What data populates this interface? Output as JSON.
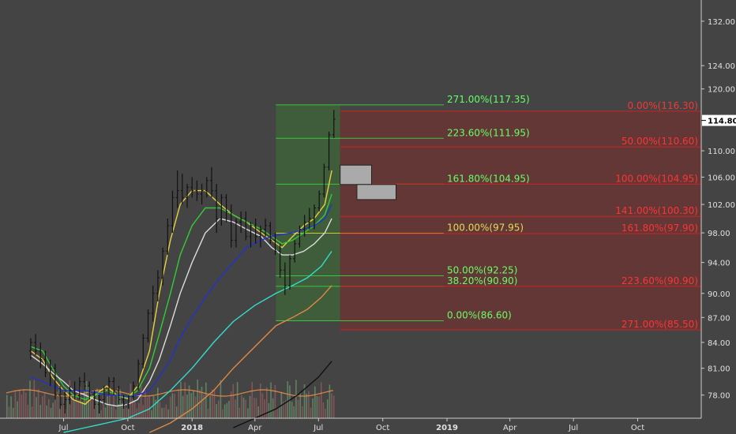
{
  "chart_data": {
    "type": "candlestick",
    "background": "#444444",
    "ylim": [
      75.5,
      136
    ],
    "y_scale": "log",
    "x_axis": {
      "ticks": [
        {
          "label": "Jul",
          "date": "2017-07",
          "bold": false
        },
        {
          "label": "Oct",
          "date": "2017-10",
          "bold": false
        },
        {
          "label": "2018",
          "date": "2018-01",
          "bold": true
        },
        {
          "label": "Apr",
          "date": "2018-04",
          "bold": false
        },
        {
          "label": "Jul",
          "date": "2018-07",
          "bold": false
        },
        {
          "label": "Oct",
          "date": "2018-10",
          "bold": false
        },
        {
          "label": "2019",
          "date": "2019-01",
          "bold": true
        },
        {
          "label": "Apr",
          "date": "2019-04",
          "bold": false
        },
        {
          "label": "Jul",
          "date": "2019-07",
          "bold": false
        },
        {
          "label": "Oct",
          "date": "2019-10",
          "bold": false
        }
      ]
    },
    "y_axis": {
      "ticks": [
        "78.00",
        "81.00",
        "84.00",
        "87.00",
        "90.00",
        "94.00",
        "98.00",
        "102.00",
        "106.00",
        "110.00",
        "114.80",
        "120.00",
        "124.00",
        "132.00"
      ],
      "current_price": "114.80",
      "current_price_color": "#ffffff"
    },
    "fib_extension_green": {
      "color": "#3cc43c",
      "label_color": "#66ff66",
      "levels": [
        {
          "label": "271.00%(117.35)",
          "price": 117.35
        },
        {
          "label": "223.60%(111.95)",
          "price": 111.95
        },
        {
          "label": "161.80%(104.95)",
          "price": 104.95
        },
        {
          "label": "100.00%(97.95)",
          "price": 97.95,
          "color": "#cccc33"
        },
        {
          "label": "50.00%(92.25)",
          "price": 92.25
        },
        {
          "label": "38.20%(90.90)",
          "price": 90.9
        },
        {
          "label": "0.00%(86.60)",
          "price": 86.6
        }
      ]
    },
    "fib_projection_red": {
      "color": "#cc2222",
      "label_color": "#ff3333",
      "levels": [
        {
          "label": "0.00%(116.30)",
          "price": 116.3
        },
        {
          "label": "50.00%(110.60)",
          "price": 110.6
        },
        {
          "label": "100.00%(104.95)",
          "price": 104.95
        },
        {
          "label": "141.00%(100.30)",
          "price": 100.3
        },
        {
          "label": "161.80%(97.90)",
          "price": 97.9
        },
        {
          "label": "223.60%(90.90)",
          "price": 90.9
        },
        {
          "label": "271.00%(85.50)",
          "price": 85.5
        }
      ]
    },
    "gray_boxes": [
      {
        "start": "2018-08-01",
        "end": "2018-09-15",
        "top": 107.8,
        "bottom": 104.9
      },
      {
        "start": "2018-08-25",
        "end": "2018-10-20",
        "top": 104.9,
        "bottom": 102.7
      }
    ],
    "green_zone": {
      "start": "2018-05-01",
      "end": "2018-08-01",
      "top": 117.35,
      "bottom": 86.6
    },
    "red_zone": {
      "start": "2018-08-01",
      "end": "2019-12-31",
      "top": 116.3,
      "bottom": 85.5
    },
    "moving_averages": [
      {
        "color": "#e8d23c",
        "points": [
          [
            "2017-05-15",
            83
          ],
          [
            "2017-06-01",
            82
          ],
          [
            "2017-06-15",
            80
          ],
          [
            "2017-07-01",
            78.5
          ],
          [
            "2017-07-15",
            77.5
          ],
          [
            "2017-08-01",
            77
          ],
          [
            "2017-08-15",
            78
          ],
          [
            "2017-09-01",
            79
          ],
          [
            "2017-09-15",
            78
          ],
          [
            "2017-10-01",
            77.6
          ],
          [
            "2017-10-15",
            79
          ],
          [
            "2017-11-01",
            83
          ],
          [
            "2017-11-15",
            90
          ],
          [
            "2017-12-01",
            97
          ],
          [
            "2017-12-15",
            102
          ],
          [
            "2018-01-01",
            104
          ],
          [
            "2018-01-20",
            104
          ],
          [
            "2018-02-10",
            102
          ],
          [
            "2018-03-01",
            100.5
          ],
          [
            "2018-03-20",
            99.5
          ],
          [
            "2018-04-10",
            98
          ],
          [
            "2018-04-25",
            97
          ],
          [
            "2018-05-10",
            96
          ],
          [
            "2018-05-25",
            97.5
          ],
          [
            "2018-06-10",
            99
          ],
          [
            "2018-06-25",
            100
          ],
          [
            "2018-07-10",
            102
          ],
          [
            "2018-07-20",
            107
          ]
        ]
      },
      {
        "color": "#33cc33",
        "points": [
          [
            "2017-05-15",
            83.5
          ],
          [
            "2017-06-01",
            83
          ],
          [
            "2017-06-15",
            81
          ],
          [
            "2017-07-01",
            79
          ],
          [
            "2017-07-15",
            78
          ],
          [
            "2017-08-01",
            77.5
          ],
          [
            "2017-08-15",
            78
          ],
          [
            "2017-09-01",
            78.5
          ],
          [
            "2017-09-15",
            78
          ],
          [
            "2017-10-01",
            77.7
          ],
          [
            "2017-10-15",
            78.5
          ],
          [
            "2017-11-01",
            81
          ],
          [
            "2017-11-15",
            85
          ],
          [
            "2017-12-01",
            90
          ],
          [
            "2017-12-15",
            95
          ],
          [
            "2018-01-01",
            99
          ],
          [
            "2018-01-20",
            101.5
          ],
          [
            "2018-02-10",
            101.5
          ],
          [
            "2018-03-01",
            100.5
          ],
          [
            "2018-03-20",
            99.5
          ],
          [
            "2018-04-10",
            98.5
          ],
          [
            "2018-04-25",
            97.5
          ],
          [
            "2018-05-10",
            96.5
          ],
          [
            "2018-05-25",
            97
          ],
          [
            "2018-06-10",
            98
          ],
          [
            "2018-06-25",
            99
          ],
          [
            "2018-07-10",
            100.5
          ],
          [
            "2018-07-20",
            103.5
          ]
        ]
      },
      {
        "color": "#dddddd",
        "points": [
          [
            "2017-05-15",
            82.5
          ],
          [
            "2017-06-01",
            81.5
          ],
          [
            "2017-06-15",
            80.5
          ],
          [
            "2017-07-01",
            79.5
          ],
          [
            "2017-07-15",
            78.5
          ],
          [
            "2017-08-01",
            78
          ],
          [
            "2017-08-15",
            77.5
          ],
          [
            "2017-09-01",
            77
          ],
          [
            "2017-09-15",
            76.8
          ],
          [
            "2017-10-01",
            77
          ],
          [
            "2017-10-15",
            77.5
          ],
          [
            "2017-11-01",
            79.5
          ],
          [
            "2017-11-15",
            82
          ],
          [
            "2017-12-01",
            86
          ],
          [
            "2017-12-15",
            90
          ],
          [
            "2018-01-01",
            94
          ],
          [
            "2018-01-20",
            98
          ],
          [
            "2018-02-10",
            100
          ],
          [
            "2018-03-01",
            99.5
          ],
          [
            "2018-03-20",
            98.5
          ],
          [
            "2018-04-10",
            97.5
          ],
          [
            "2018-04-25",
            96
          ],
          [
            "2018-05-10",
            95
          ],
          [
            "2018-05-25",
            95
          ],
          [
            "2018-06-10",
            95.5
          ],
          [
            "2018-06-25",
            96.5
          ],
          [
            "2018-07-10",
            98
          ],
          [
            "2018-07-20",
            100
          ]
        ]
      },
      {
        "color": "#2233cc",
        "points": [
          [
            "2017-05-15",
            80
          ],
          [
            "2017-06-01",
            79.5
          ],
          [
            "2017-06-15",
            79
          ],
          [
            "2017-07-01",
            78.5
          ],
          [
            "2017-07-15",
            78.5
          ],
          [
            "2017-08-01",
            78.5
          ],
          [
            "2017-08-15",
            78.3
          ],
          [
            "2017-09-01",
            78
          ],
          [
            "2017-09-15",
            78
          ],
          [
            "2017-10-01",
            77.8
          ],
          [
            "2017-10-15",
            78
          ],
          [
            "2017-11-01",
            78.5
          ],
          [
            "2017-11-15",
            80
          ],
          [
            "2017-12-01",
            82
          ],
          [
            "2017-12-15",
            84.5
          ],
          [
            "2018-01-01",
            87
          ],
          [
            "2018-01-20",
            89.5
          ],
          [
            "2018-02-10",
            92
          ],
          [
            "2018-03-01",
            94
          ],
          [
            "2018-03-20",
            96
          ],
          [
            "2018-04-10",
            97
          ],
          [
            "2018-04-25",
            97.5
          ],
          [
            "2018-05-10",
            97.8
          ],
          [
            "2018-05-25",
            98
          ],
          [
            "2018-06-10",
            98.5
          ],
          [
            "2018-06-25",
            99
          ],
          [
            "2018-07-10",
            100
          ],
          [
            "2018-07-20",
            102
          ]
        ]
      },
      {
        "color": "#33ddcc",
        "points": [
          [
            "2017-07-01",
            74
          ],
          [
            "2017-08-01",
            74.5
          ],
          [
            "2017-09-01",
            75
          ],
          [
            "2017-10-01",
            75.5
          ],
          [
            "2017-11-01",
            76.5
          ],
          [
            "2017-12-01",
            78.5
          ],
          [
            "2018-01-01",
            81
          ],
          [
            "2018-02-01",
            84
          ],
          [
            "2018-03-01",
            86.5
          ],
          [
            "2018-04-01",
            88.5
          ],
          [
            "2018-05-01",
            90
          ],
          [
            "2018-05-25",
            91
          ],
          [
            "2018-06-15",
            92
          ],
          [
            "2018-07-05",
            93.5
          ],
          [
            "2018-07-20",
            95.5
          ]
        ]
      },
      {
        "color": "#e08844",
        "points": [
          [
            "2017-11-01",
            74
          ],
          [
            "2017-12-01",
            75
          ],
          [
            "2018-01-01",
            76.5
          ],
          [
            "2018-02-01",
            78.5
          ],
          [
            "2018-03-01",
            81
          ],
          [
            "2018-04-01",
            83.5
          ],
          [
            "2018-05-01",
            86
          ],
          [
            "2018-05-25",
            87
          ],
          [
            "2018-06-15",
            88
          ],
          [
            "2018-07-05",
            89.5
          ],
          [
            "2018-07-20",
            91
          ]
        ]
      },
      {
        "color": "#111111",
        "points": [
          [
            "2018-03-01",
            74.5
          ],
          [
            "2018-04-01",
            75.5
          ],
          [
            "2018-05-01",
            76.5
          ],
          [
            "2018-06-01",
            78
          ],
          [
            "2018-07-01",
            80
          ],
          [
            "2018-07-20",
            81.8
          ]
        ]
      }
    ],
    "candles": [
      [
        "2017-05-15",
        83,
        84.5,
        82,
        84
      ],
      [
        "2017-05-22",
        84,
        85,
        82.5,
        83
      ],
      [
        "2017-05-29",
        83,
        84,
        81,
        82
      ],
      [
        "2017-06-05",
        82,
        83,
        80,
        80.5
      ],
      [
        "2017-06-12",
        80.5,
        82,
        79,
        81
      ],
      [
        "2017-06-19",
        81,
        81.5,
        77.5,
        78
      ],
      [
        "2017-06-26",
        78,
        79,
        76.5,
        77
      ],
      [
        "2017-07-03",
        77,
        78.5,
        76,
        77.5
      ],
      [
        "2017-07-10",
        77.5,
        79,
        77,
        78.5
      ],
      [
        "2017-07-17",
        78.5,
        79.5,
        77.5,
        78
      ],
      [
        "2017-07-24",
        78,
        80,
        77.5,
        79.5
      ],
      [
        "2017-07-31",
        79.5,
        80.5,
        78.5,
        79
      ],
      [
        "2017-08-07",
        79,
        79.5,
        77.5,
        78
      ],
      [
        "2017-08-14",
        78,
        78.5,
        76.5,
        77
      ],
      [
        "2017-08-21",
        77,
        78,
        76,
        77.5
      ],
      [
        "2017-08-28",
        77.5,
        79,
        77,
        78.5
      ],
      [
        "2017-09-04",
        78.5,
        80,
        78,
        79.5
      ],
      [
        "2017-09-11",
        79.5,
        80,
        78,
        78.5
      ],
      [
        "2017-09-18",
        78.5,
        79,
        77,
        77.5
      ],
      [
        "2017-09-25",
        77.5,
        78,
        76.5,
        77
      ],
      [
        "2017-10-02",
        77,
        78,
        76.5,
        77.8
      ],
      [
        "2017-10-09",
        77.8,
        79.5,
        77.5,
        79
      ],
      [
        "2017-10-16",
        79,
        82,
        78.5,
        81.5
      ],
      [
        "2017-10-23",
        81.5,
        85,
        81,
        84.5
      ],
      [
        "2017-10-30",
        84.5,
        88,
        84,
        87.5
      ],
      [
        "2017-11-06",
        87.5,
        91,
        86.5,
        90
      ],
      [
        "2017-11-13",
        90,
        93,
        89,
        92
      ],
      [
        "2017-11-20",
        92,
        96,
        91,
        95.5
      ],
      [
        "2017-11-27",
        95.5,
        100,
        95,
        99
      ],
      [
        "2017-12-04",
        99,
        104,
        98,
        103
      ],
      [
        "2017-12-11",
        103,
        107,
        101.5,
        104
      ],
      [
        "2017-12-18",
        104,
        106.5,
        102,
        103
      ],
      [
        "2017-12-25",
        103,
        105,
        101.5,
        104.5
      ],
      [
        "2018-01-01",
        104.5,
        106,
        103,
        104
      ],
      [
        "2018-01-08",
        104,
        105.5,
        102.5,
        103.5
      ],
      [
        "2018-01-15",
        103.5,
        105,
        102,
        104
      ],
      [
        "2018-01-22",
        104,
        106,
        103,
        105.5
      ],
      [
        "2018-01-29",
        105.5,
        107.5,
        103,
        104
      ],
      [
        "2018-02-05",
        104,
        105,
        98,
        100
      ],
      [
        "2018-02-12",
        100,
        103.5,
        99,
        103
      ],
      [
        "2018-02-19",
        103,
        103.5,
        99.5,
        101
      ],
      [
        "2018-02-26",
        101,
        102,
        96,
        97
      ],
      [
        "2018-03-05",
        97,
        100,
        96,
        99.5
      ],
      [
        "2018-03-12",
        99.5,
        101,
        98,
        100
      ],
      [
        "2018-03-19",
        100,
        101,
        97,
        97.5
      ],
      [
        "2018-03-26",
        97.5,
        99.5,
        96,
        99
      ],
      [
        "2018-04-02",
        99,
        100,
        96.5,
        97.5
      ],
      [
        "2018-04-09",
        97.5,
        99,
        96,
        98.5
      ],
      [
        "2018-04-16",
        98.5,
        100,
        97.5,
        99
      ],
      [
        "2018-04-23",
        99,
        99.5,
        96.5,
        97
      ],
      [
        "2018-04-30",
        97,
        98,
        95,
        95.5
      ],
      [
        "2018-05-07",
        95.5,
        96.5,
        92,
        93
      ],
      [
        "2018-05-14",
        93,
        94,
        89.8,
        91
      ],
      [
        "2018-05-21",
        91,
        95,
        90.5,
        94.5
      ],
      [
        "2018-05-28",
        94.5,
        97,
        94,
        96.5
      ],
      [
        "2018-06-04",
        96.5,
        99,
        96,
        98.5
      ],
      [
        "2018-06-11",
        98.5,
        100.5,
        97.5,
        99.5
      ],
      [
        "2018-06-18",
        99.5,
        101.5,
        98.5,
        100
      ],
      [
        "2018-06-25",
        100,
        102,
        98.5,
        101.5
      ],
      [
        "2018-07-02",
        101.5,
        104,
        101,
        103.5
      ],
      [
        "2018-07-09",
        103.5,
        108,
        103,
        107.5
      ],
      [
        "2018-07-16",
        107.5,
        113,
        107,
        112.5
      ],
      [
        "2018-07-23",
        112.5,
        116.5,
        112,
        115
      ]
    ],
    "volume_baseline": 76.2,
    "volume_line_color": "#e08844"
  }
}
